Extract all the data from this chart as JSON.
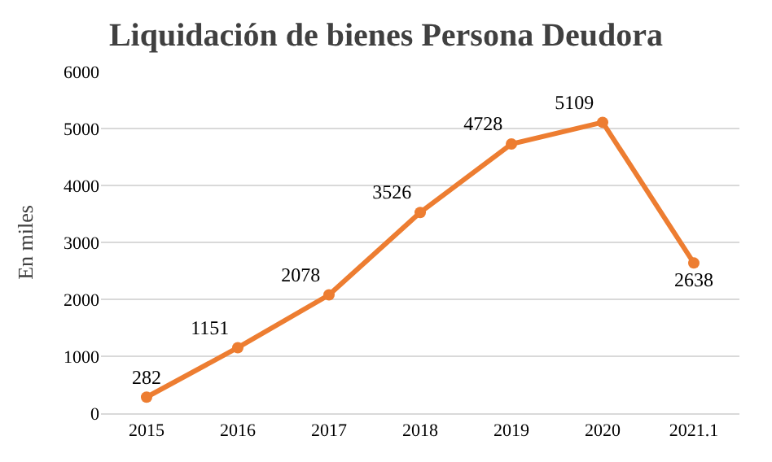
{
  "chart_data": {
    "type": "line",
    "title": "Liquidación de bienes Persona Deudora",
    "ylabel": "En miles",
    "categories": [
      "2015",
      "2016",
      "2017",
      "2018",
      "2019",
      "2020",
      "2021.1"
    ],
    "series": [
      {
        "color": "#ed7d31",
        "values": [
          282,
          1151,
          2078,
          3526,
          4728,
          5109,
          2638
        ]
      }
    ],
    "ylim": [
      0,
      6000
    ],
    "yticks": [
      0,
      1000,
      2000,
      3000,
      4000,
      5000,
      6000
    ],
    "grid": "y",
    "marker": "circle",
    "line_style": "solid",
    "data_labels": true,
    "legend": false
  }
}
